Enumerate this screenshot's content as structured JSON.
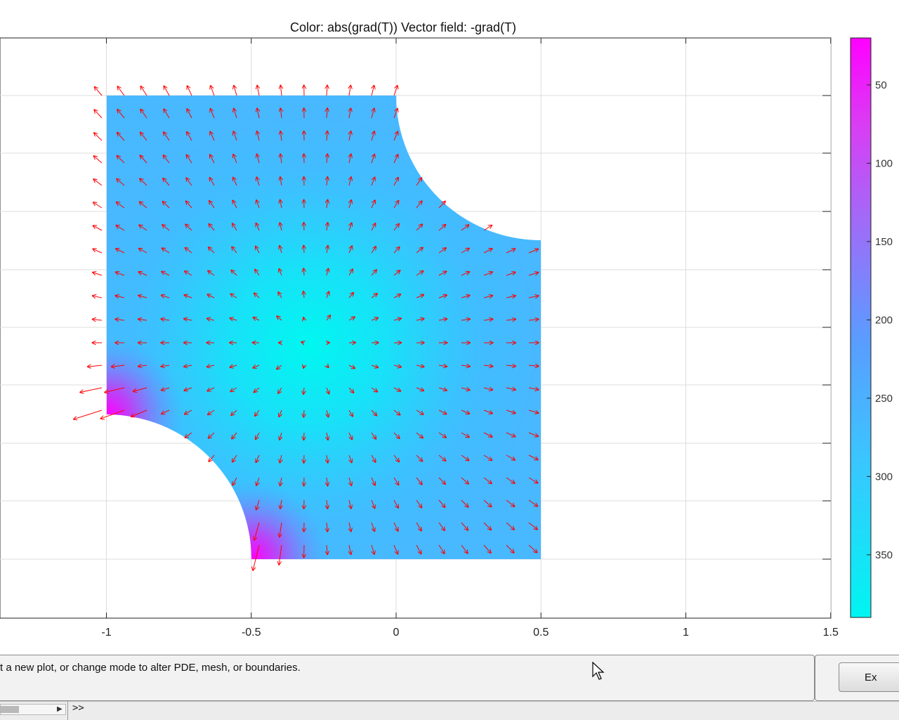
{
  "plot": {
    "title": "Color: abs(grad(T))  Vector field: -grad(T)",
    "x_ticks": [
      "-1",
      "-0.5",
      "0",
      "0.5",
      "1",
      "1.5"
    ],
    "colorbar_ticks": [
      "350",
      "300",
      "250",
      "200",
      "150",
      "100",
      "50"
    ],
    "colors": {
      "arrows": "#ff0000",
      "low": "#00f5f2",
      "mid": "#4aa8ff",
      "high": "#ff00ff",
      "grid": "#dddddd"
    }
  },
  "chart_data": {
    "type": "heatmap",
    "title": "Color: abs(grad(T))  Vector field: -grad(T)",
    "xlim": [
      -1.37,
      1.5
    ],
    "x_ticks": [
      -1,
      -0.5,
      0,
      0.5,
      1,
      1.5
    ],
    "colorbar": {
      "range": [
        10,
        380
      ],
      "ticks": [
        50,
        100,
        150,
        200,
        250,
        300,
        350
      ],
      "colormap": "cyan-to-magenta"
    },
    "vector_field": "-grad(T)",
    "arrow_color": "red"
  },
  "status": {
    "message": "t a new plot, or change mode to alter PDE, mesh, or boundaries."
  },
  "exit_button": {
    "label": "Ex"
  },
  "command_line": {
    "prompt": ">>",
    "scroll_arrow": "▶"
  }
}
